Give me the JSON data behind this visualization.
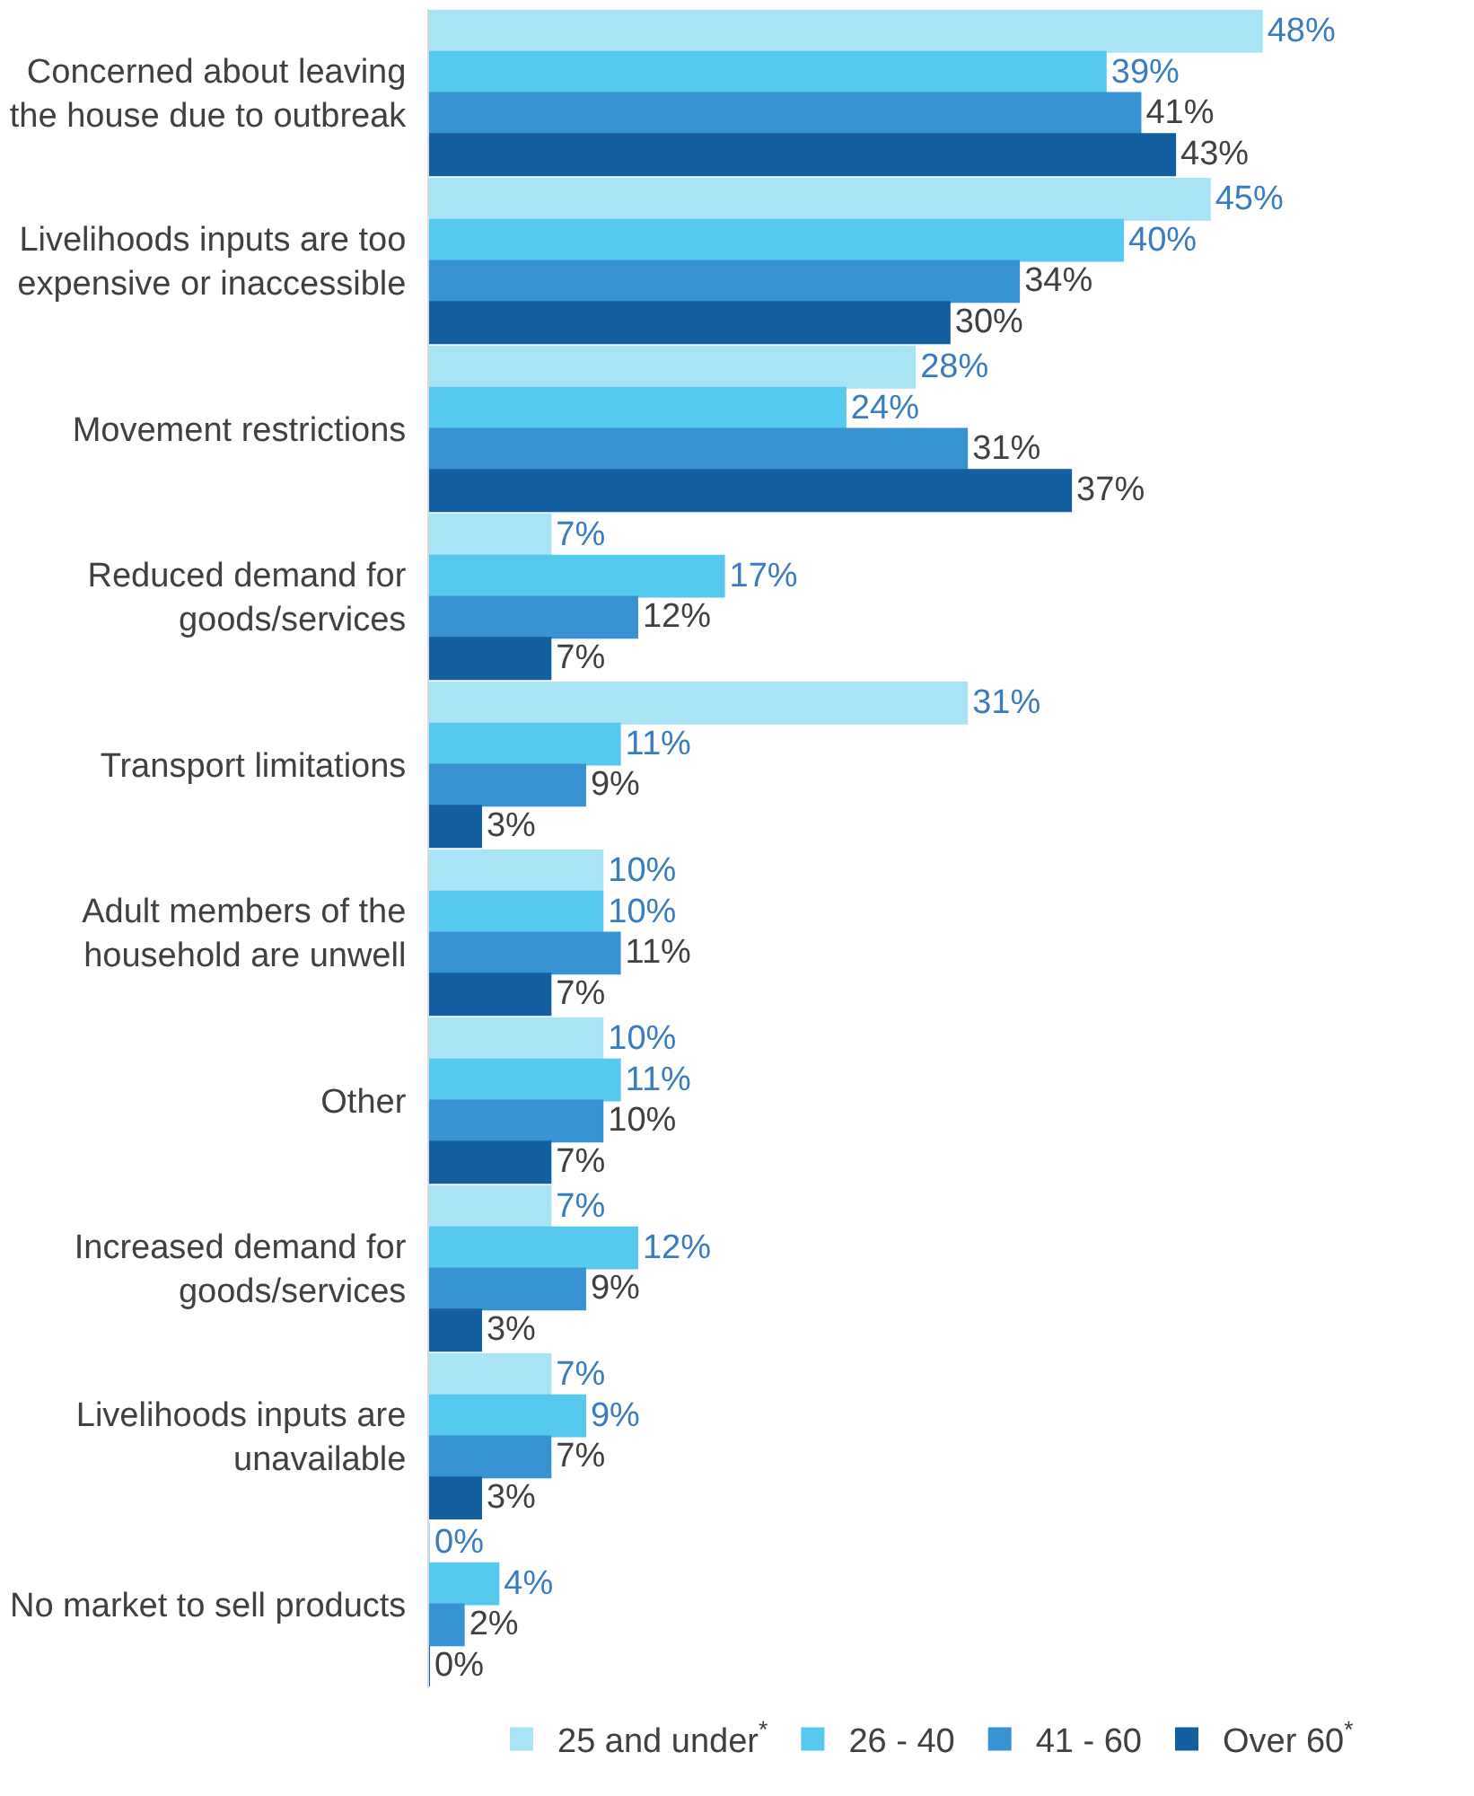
{
  "chart_data": {
    "type": "bar",
    "orientation": "horizontal",
    "categories": [
      "Concerned about leaving the house due to outbreak",
      "Livelihoods inputs are too expensive or inaccessible",
      "Movement restrictions",
      "Reduced demand for goods/services",
      "Transport limitations",
      "Adult members of the household are unwell",
      "Other",
      "Increased demand for goods/services",
      "Livelihoods inputs are unavailable",
      "No market to sell products"
    ],
    "series": [
      {
        "name": "25 and under$^{*}$",
        "color": "#a9e3f6",
        "values": [
          48,
          45,
          28,
          7,
          31,
          10,
          10,
          7,
          7,
          0
        ],
        "value_labels": [
          "48%",
          "45%",
          "28%",
          "7%",
          "31%",
          "10%",
          "10%",
          "7%",
          "7%",
          "0%"
        ]
      },
      {
        "name": "26 - 40",
        "color": "#56c9ee",
        "values": [
          39,
          40,
          24,
          17,
          11,
          10,
          11,
          12,
          9,
          4
        ],
        "value_labels": [
          "39%",
          "40%",
          "24%",
          "17%",
          "11%",
          "10%",
          "11%",
          "12%",
          "9%",
          "4%"
        ]
      },
      {
        "name": "41 - 60",
        "color": "#3893d3",
        "values": [
          41,
          34,
          31,
          12,
          9,
          11,
          10,
          9,
          7,
          2
        ],
        "value_labels": [
          "41%",
          "34%",
          "31%",
          "12%",
          "9%",
          "11%",
          "10%",
          "9%",
          "7%",
          "2%"
        ]
      },
      {
        "name": "Over 60$^{*}$",
        "color": "#145f9f",
        "values": [
          43,
          30,
          37,
          7,
          3,
          7,
          7,
          3,
          3,
          0
        ],
        "value_labels": [
          "43%",
          "30%",
          "37%",
          "7%",
          "3%",
          "7%",
          "7%",
          "3%",
          "3%",
          "0%"
        ]
      }
    ],
    "tick_labels": "y",
    "legend": "bottom"
  }
}
